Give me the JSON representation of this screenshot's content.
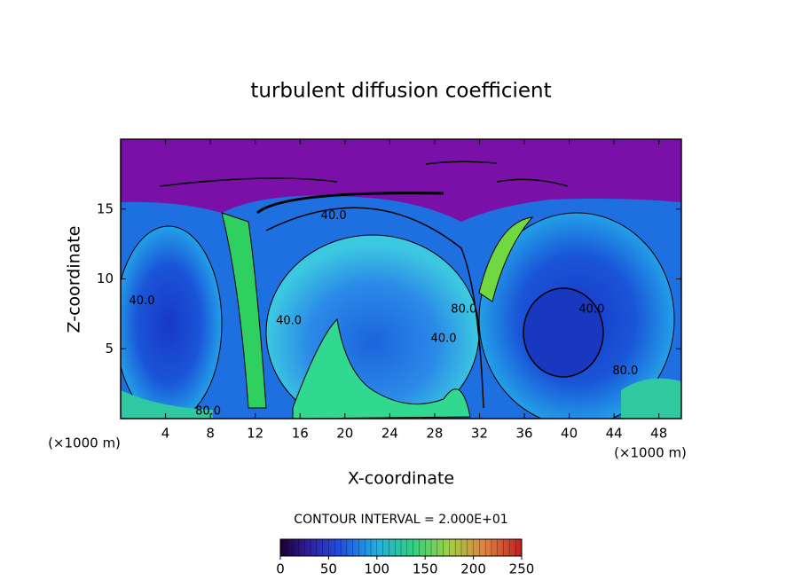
{
  "chart_data": {
    "type": "contour",
    "title": "turbulent diffusion coefficient",
    "xlabel": "X-coordinate",
    "ylabel": "Z-coordinate",
    "x_unit": "(×1000 m)",
    "xlim": [
      0,
      50
    ],
    "xticks": [
      4,
      8,
      12,
      16,
      20,
      24,
      28,
      32,
      36,
      40,
      44,
      48
    ],
    "ylim": [
      0,
      20
    ],
    "yticks": [
      5,
      10,
      15
    ],
    "contour_interval": "CONTOUR INTERVAL = 2.000E+01",
    "clim": [
      0,
      250
    ],
    "cticks": [
      0,
      50,
      100,
      150,
      200,
      250
    ],
    "contour_labels": [
      {
        "text": "40.0",
        "x": 1.9,
        "y": 8.4
      },
      {
        "text": "40.0",
        "x": 15.0,
        "y": 7.0
      },
      {
        "text": "40.0",
        "x": 19.0,
        "y": 14.5
      },
      {
        "text": "80.0",
        "x": 30.6,
        "y": 7.8
      },
      {
        "text": "40.0",
        "x": 28.8,
        "y": 5.7
      },
      {
        "text": "40.0",
        "x": 42.0,
        "y": 7.8
      },
      {
        "text": "80.0",
        "x": 45.0,
        "y": 3.4
      },
      {
        "text": "80.0",
        "x": 7.8,
        "y": 0.5
      }
    ]
  }
}
